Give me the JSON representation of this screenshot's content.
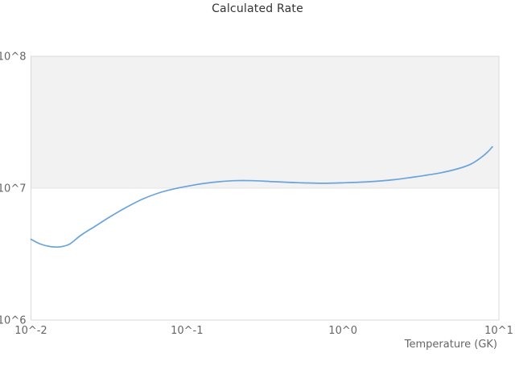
{
  "title": "Calculated Rate",
  "colors": {
    "line": "#6ba3dc",
    "band_fill": "#f2f2f2",
    "plot_border": "#d9d9d9",
    "gridline": "#e6e6e6",
    "title_text": "#333333",
    "tick_text": "#666666"
  },
  "chart_data": {
    "type": "line",
    "title": "Calculated Rate",
    "xlabel": "Temperature (GK)",
    "ylabel": "",
    "x_scale": "log",
    "y_scale": "log",
    "xlim": [
      0.01,
      10
    ],
    "ylim": [
      1000000.0,
      100000000.0
    ],
    "x_ticks": [
      {
        "value": 0.01,
        "label": "10^-2"
      },
      {
        "value": 0.1,
        "label": "10^-1"
      },
      {
        "value": 1,
        "label": "10^0"
      },
      {
        "value": 10,
        "label": "10^1"
      }
    ],
    "y_ticks": [
      {
        "value": 1000000.0,
        "label": "10^6"
      },
      {
        "value": 10000000.0,
        "label": "10^7"
      },
      {
        "value": 100000000.0,
        "label": "10^8"
      }
    ],
    "alternate_band": {
      "from": 10000000.0,
      "to": 100000000.0
    },
    "grid": "horizontal-only",
    "legend": "none",
    "series": [
      {
        "name": "Calculated Rate",
        "points": [
          [
            0.01,
            4100000.0
          ],
          [
            0.0115,
            3770000.0
          ],
          [
            0.0133,
            3610000.0
          ],
          [
            0.0153,
            3590000.0
          ],
          [
            0.0177,
            3770000.0
          ],
          [
            0.0209,
            4400000.0
          ],
          [
            0.0259,
            5160000.0
          ],
          [
            0.0328,
            6160000.0
          ],
          [
            0.0416,
            7240000.0
          ],
          [
            0.0527,
            8330000.0
          ],
          [
            0.0683,
            9320000.0
          ],
          [
            0.0868,
            10000000.0
          ],
          [
            0.113,
            10600000.0
          ],
          [
            0.148,
            11100000.0
          ],
          [
            0.199,
            11400000.0
          ],
          [
            0.267,
            11400000.0
          ],
          [
            0.36,
            11200000.0
          ],
          [
            0.515,
            11000000.0
          ],
          [
            0.734,
            10900000.0
          ],
          [
            1.05,
            11000000.0
          ],
          [
            1.5,
            11200000.0
          ],
          [
            2.14,
            11600000.0
          ],
          [
            3.06,
            12300000.0
          ],
          [
            4.26,
            13100000.0
          ],
          [
            5.53,
            14100000.0
          ],
          [
            6.59,
            15200000.0
          ],
          [
            7.6,
            16900000.0
          ],
          [
            8.47,
            18800000.0
          ],
          [
            9.08,
            20600000.0
          ]
        ]
      }
    ]
  }
}
